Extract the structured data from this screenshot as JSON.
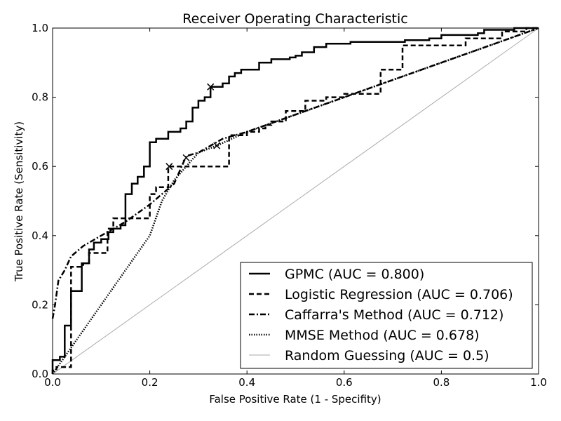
{
  "chart_data": {
    "type": "line",
    "title": "Receiver Operating Characteristic",
    "xlabel": "False Positive Rate (1 - Specifity)",
    "ylabel": "True Positive Rate (Sensitivity)",
    "xlim": [
      0,
      1
    ],
    "ylim": [
      0,
      1
    ],
    "x_ticks": [
      "0.0",
      "0.2",
      "0.4",
      "0.6",
      "0.8",
      "1.0"
    ],
    "y_ticks": [
      "0.0",
      "0.2",
      "0.4",
      "0.6",
      "0.8",
      "1.0"
    ],
    "grid": false,
    "legend_position": "bottom-right",
    "series": [
      {
        "name": "GPMC (AUC = 0.800)",
        "color": "#000000",
        "style": "solid",
        "marker": {
          "x": 0.325,
          "y": 0.83
        },
        "points": [
          [
            0,
            0
          ],
          [
            0,
            0.04
          ],
          [
            0.015,
            0.04
          ],
          [
            0.015,
            0.05
          ],
          [
            0.025,
            0.05
          ],
          [
            0.025,
            0.14
          ],
          [
            0.038,
            0.14
          ],
          [
            0.038,
            0.24
          ],
          [
            0.06,
            0.24
          ],
          [
            0.06,
            0.32
          ],
          [
            0.075,
            0.32
          ],
          [
            0.075,
            0.36
          ],
          [
            0.085,
            0.36
          ],
          [
            0.085,
            0.38
          ],
          [
            0.1,
            0.38
          ],
          [
            0.1,
            0.39
          ],
          [
            0.115,
            0.39
          ],
          [
            0.115,
            0.41
          ],
          [
            0.125,
            0.41
          ],
          [
            0.125,
            0.42
          ],
          [
            0.14,
            0.42
          ],
          [
            0.14,
            0.43
          ],
          [
            0.15,
            0.43
          ],
          [
            0.15,
            0.52
          ],
          [
            0.163,
            0.52
          ],
          [
            0.163,
            0.55
          ],
          [
            0.175,
            0.55
          ],
          [
            0.175,
            0.57
          ],
          [
            0.188,
            0.57
          ],
          [
            0.188,
            0.6
          ],
          [
            0.2,
            0.6
          ],
          [
            0.2,
            0.67
          ],
          [
            0.213,
            0.67
          ],
          [
            0.213,
            0.68
          ],
          [
            0.238,
            0.68
          ],
          [
            0.238,
            0.7
          ],
          [
            0.263,
            0.7
          ],
          [
            0.263,
            0.71
          ],
          [
            0.275,
            0.71
          ],
          [
            0.275,
            0.73
          ],
          [
            0.288,
            0.73
          ],
          [
            0.288,
            0.77
          ],
          [
            0.3,
            0.77
          ],
          [
            0.3,
            0.79
          ],
          [
            0.313,
            0.79
          ],
          [
            0.313,
            0.8
          ],
          [
            0.325,
            0.8
          ],
          [
            0.325,
            0.83
          ],
          [
            0.35,
            0.83
          ],
          [
            0.35,
            0.84
          ],
          [
            0.363,
            0.84
          ],
          [
            0.363,
            0.86
          ],
          [
            0.375,
            0.86
          ],
          [
            0.375,
            0.87
          ],
          [
            0.388,
            0.87
          ],
          [
            0.388,
            0.88
          ],
          [
            0.425,
            0.88
          ],
          [
            0.425,
            0.9
          ],
          [
            0.45,
            0.9
          ],
          [
            0.45,
            0.91
          ],
          [
            0.488,
            0.91
          ],
          [
            0.488,
            0.915
          ],
          [
            0.5,
            0.915
          ],
          [
            0.5,
            0.92
          ],
          [
            0.513,
            0.92
          ],
          [
            0.513,
            0.93
          ],
          [
            0.538,
            0.93
          ],
          [
            0.538,
            0.945
          ],
          [
            0.563,
            0.945
          ],
          [
            0.563,
            0.955
          ],
          [
            0.613,
            0.955
          ],
          [
            0.613,
            0.96
          ],
          [
            0.725,
            0.96
          ],
          [
            0.725,
            0.965
          ],
          [
            0.775,
            0.965
          ],
          [
            0.775,
            0.97
          ],
          [
            0.8,
            0.97
          ],
          [
            0.8,
            0.98
          ],
          [
            0.875,
            0.98
          ],
          [
            0.875,
            0.985
          ],
          [
            0.888,
            0.985
          ],
          [
            0.888,
            0.995
          ],
          [
            0.95,
            0.995
          ],
          [
            0.95,
            1.0
          ],
          [
            1.0,
            1.0
          ]
        ]
      },
      {
        "name": "Logistic Regression (AUC = 0.706)",
        "color": "#000000",
        "style": "dashed",
        "marker": {
          "x": 0.24,
          "y": 0.6
        },
        "points": [
          [
            0,
            0
          ],
          [
            0,
            0.01
          ],
          [
            0.008,
            0.01
          ],
          [
            0.008,
            0.02
          ],
          [
            0.038,
            0.02
          ],
          [
            0.038,
            0.31
          ],
          [
            0.063,
            0.31
          ],
          [
            0.063,
            0.32
          ],
          [
            0.075,
            0.32
          ],
          [
            0.075,
            0.35
          ],
          [
            0.113,
            0.35
          ],
          [
            0.113,
            0.42
          ],
          [
            0.125,
            0.42
          ],
          [
            0.125,
            0.45
          ],
          [
            0.2,
            0.45
          ],
          [
            0.2,
            0.52
          ],
          [
            0.213,
            0.52
          ],
          [
            0.213,
            0.54
          ],
          [
            0.238,
            0.54
          ],
          [
            0.238,
            0.6
          ],
          [
            0.263,
            0.6
          ],
          [
            0.263,
            0.6
          ],
          [
            0.363,
            0.6
          ],
          [
            0.363,
            0.69
          ],
          [
            0.4,
            0.69
          ],
          [
            0.4,
            0.7
          ],
          [
            0.425,
            0.7
          ],
          [
            0.425,
            0.71
          ],
          [
            0.438,
            0.71
          ],
          [
            0.438,
            0.72
          ],
          [
            0.45,
            0.72
          ],
          [
            0.45,
            0.73
          ],
          [
            0.48,
            0.73
          ],
          [
            0.48,
            0.76
          ],
          [
            0.52,
            0.76
          ],
          [
            0.52,
            0.79
          ],
          [
            0.563,
            0.79
          ],
          [
            0.563,
            0.8
          ],
          [
            0.6,
            0.8
          ],
          [
            0.6,
            0.81
          ],
          [
            0.675,
            0.81
          ],
          [
            0.675,
            0.88
          ],
          [
            0.72,
            0.88
          ],
          [
            0.72,
            0.95
          ],
          [
            0.85,
            0.95
          ],
          [
            0.85,
            0.97
          ],
          [
            0.925,
            0.97
          ],
          [
            0.925,
            0.99
          ],
          [
            0.975,
            0.99
          ],
          [
            0.975,
            1.0
          ],
          [
            1.0,
            1.0
          ]
        ]
      },
      {
        "name": "Caffarra's Method (AUC = 0.712)",
        "color": "#000000",
        "style": "dashdot",
        "points": [
          [
            0,
            0.16
          ],
          [
            0.005,
            0.2
          ],
          [
            0.012,
            0.27
          ],
          [
            0.025,
            0.3
          ],
          [
            0.038,
            0.34
          ],
          [
            0.063,
            0.37
          ],
          [
            0.1,
            0.4
          ],
          [
            0.15,
            0.44
          ],
          [
            0.2,
            0.49
          ],
          [
            0.25,
            0.55
          ],
          [
            0.275,
            0.63
          ],
          [
            0.3,
            0.64
          ],
          [
            0.35,
            0.68
          ],
          [
            0.4,
            0.7
          ],
          [
            0.5,
            0.75
          ],
          [
            0.6,
            0.8
          ],
          [
            0.7,
            0.85
          ],
          [
            0.8,
            0.9
          ],
          [
            0.9,
            0.95
          ],
          [
            1.0,
            1.0
          ]
        ]
      },
      {
        "name": "MMSE Method (AUC = 0.678)",
        "color": "#000000",
        "style": "dotted",
        "marker": {
          "x": 0.275,
          "y": 0.625
        },
        "marker2": {
          "x": 0.338,
          "y": 0.66
        },
        "points": [
          [
            0,
            0
          ],
          [
            0.05,
            0.1
          ],
          [
            0.1,
            0.2
          ],
          [
            0.15,
            0.3
          ],
          [
            0.2,
            0.4
          ],
          [
            0.225,
            0.5
          ],
          [
            0.25,
            0.56
          ],
          [
            0.275,
            0.6
          ],
          [
            0.3,
            0.64
          ],
          [
            0.338,
            0.66
          ],
          [
            0.4,
            0.7
          ],
          [
            0.5,
            0.75
          ],
          [
            0.6,
            0.8
          ],
          [
            0.7,
            0.85
          ],
          [
            0.8,
            0.9
          ],
          [
            0.9,
            0.95
          ],
          [
            1.0,
            1.0
          ]
        ]
      },
      {
        "name": "Random Guessing (AUC = 0.5)",
        "color": "#aaaaaa",
        "style": "solid-thin",
        "points": [
          [
            0,
            0
          ],
          [
            1,
            1
          ]
        ]
      }
    ]
  }
}
